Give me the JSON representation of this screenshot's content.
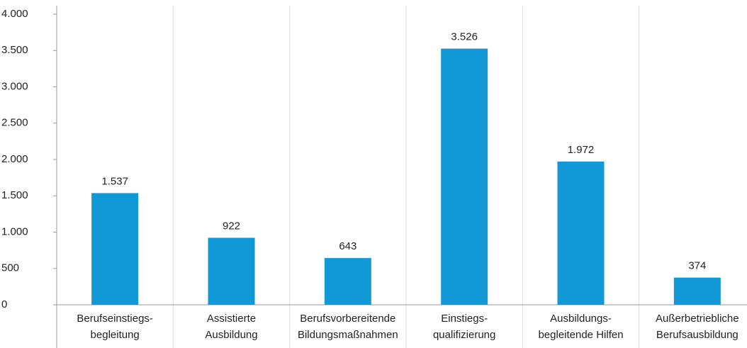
{
  "chart_data": {
    "type": "bar",
    "categories": [
      [
        "Berufseinstiegs-",
        "begleitung"
      ],
      [
        "Assistierte",
        "Ausbildung"
      ],
      [
        "Berufsvorbereitende",
        "Bildungsmaßnahmen"
      ],
      [
        "Einstiegs-",
        "qualifizierung"
      ],
      [
        "Ausbildungs-",
        "begleitende Hilfen"
      ],
      [
        "Außerbetriebliche",
        "Berufsausbildung"
      ]
    ],
    "values": [
      1537,
      922,
      643,
      3526,
      1972,
      374
    ],
    "value_labels": [
      "1.537",
      "922",
      "643",
      "3.526",
      "1.972",
      "374"
    ],
    "color": "#1198d6",
    "ylim": [
      0,
      4000
    ],
    "yticks": [
      0,
      500,
      {
        "value": 1000,
        "label": "1.000"
      },
      {
        "value": 1500,
        "label": "1.500"
      },
      {
        "value": 2000,
        "label": "2.000"
      },
      {
        "value": 2500,
        "label": "2.500"
      },
      {
        "value": 3000,
        "label": "3.000"
      },
      {
        "value": 3500,
        "label": "3.500"
      },
      {
        "value": 4000,
        "label": "4.000"
      }
    ]
  }
}
